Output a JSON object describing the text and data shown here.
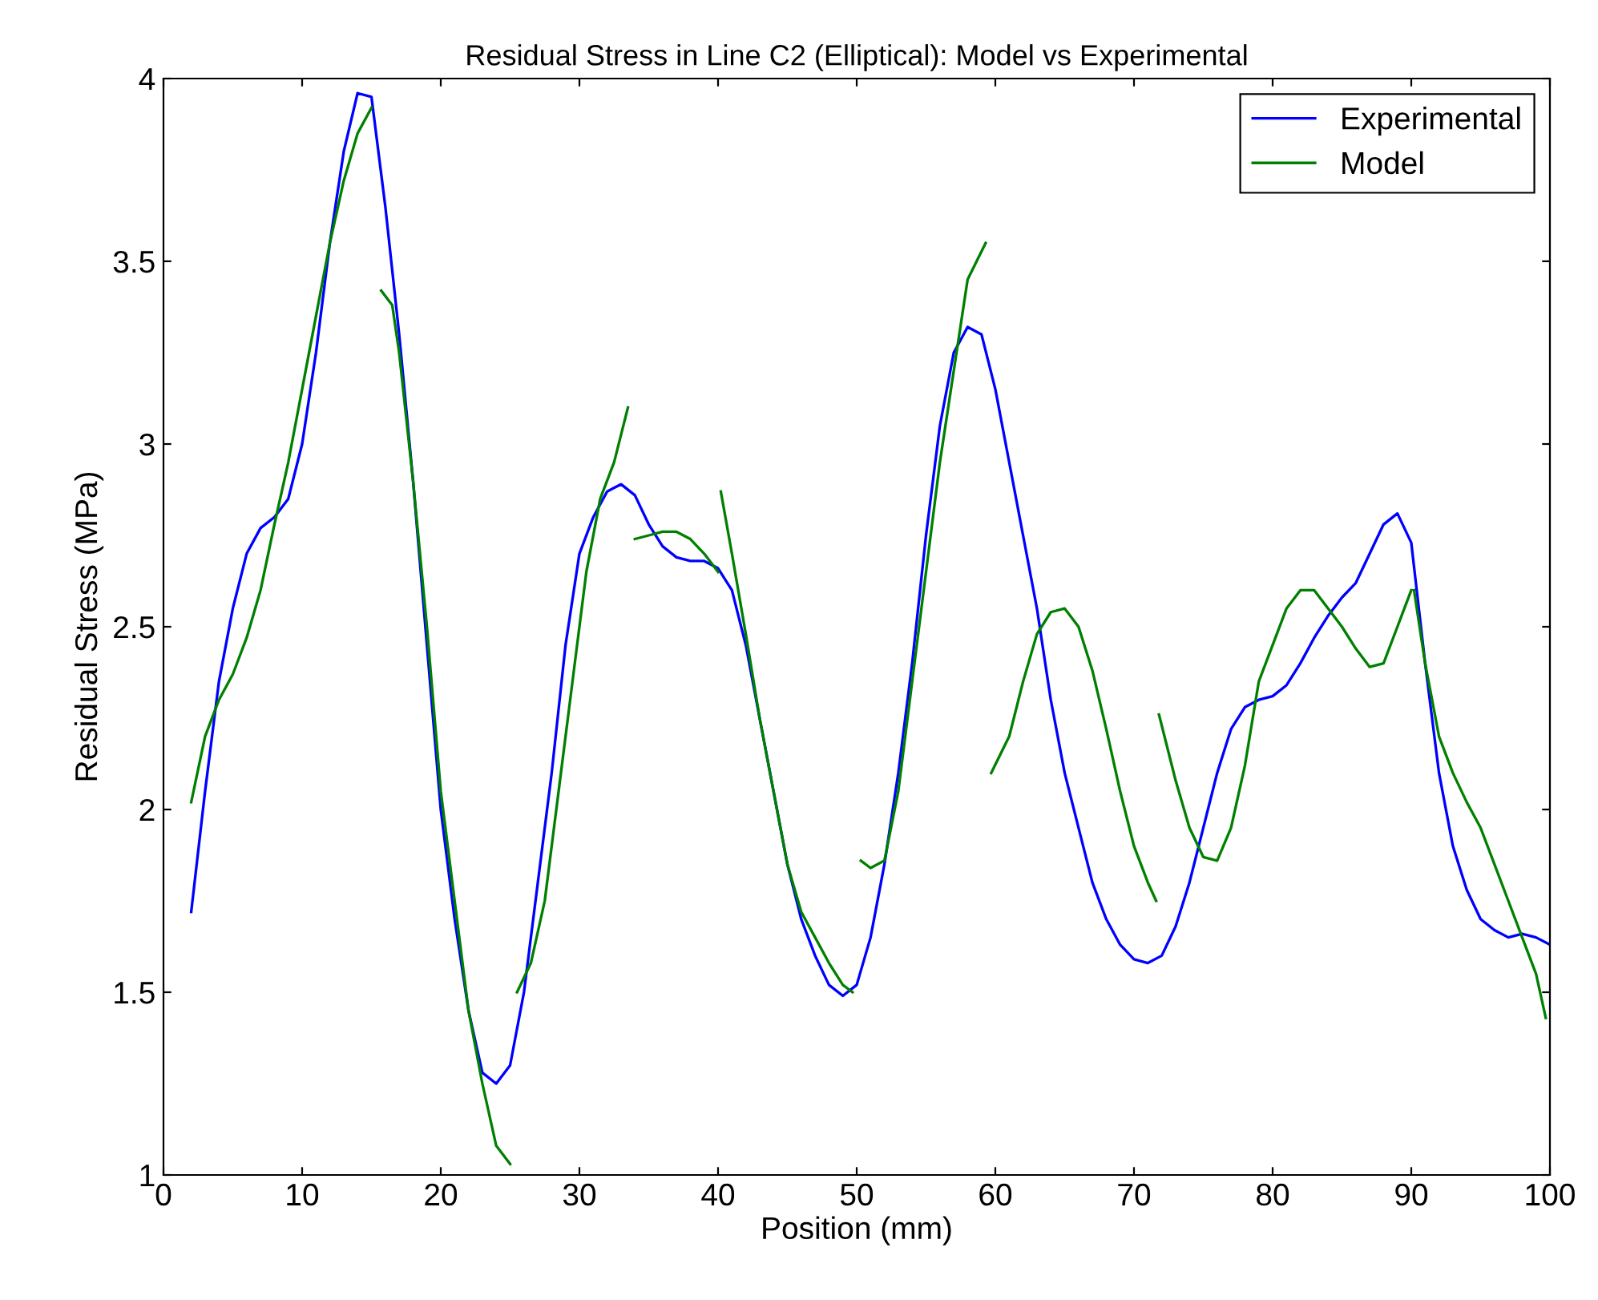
{
  "chart_data": {
    "type": "line",
    "title": "Residual Stress in Line C2 (Elliptical): Model vs Experimental",
    "xlabel": "Position (mm)",
    "ylabel": "Residual Stress (MPa)",
    "xlim": [
      0,
      100
    ],
    "ylim": [
      1,
      4
    ],
    "xticks": [
      0,
      10,
      20,
      30,
      40,
      50,
      60,
      70,
      80,
      90,
      100
    ],
    "yticks": [
      1,
      1.5,
      2,
      2.5,
      3,
      3.5,
      4
    ],
    "grid": false,
    "legend": "top right",
    "line_style": "solid",
    "marker": "none",
    "series": [
      {
        "name": "Experimental",
        "color": "#0000ff",
        "x": [
          2,
          3,
          4,
          5,
          6,
          7,
          8,
          9,
          10,
          11,
          12,
          13,
          14,
          15,
          16,
          17,
          18,
          19,
          20,
          21,
          22,
          23,
          24,
          25,
          26,
          27,
          28,
          29,
          30,
          31,
          32,
          33,
          34,
          35,
          36,
          37,
          38,
          39,
          40,
          41,
          42,
          43,
          44,
          45,
          46,
          47,
          48,
          49,
          50,
          51,
          52,
          53,
          54,
          55,
          56,
          57,
          58,
          59,
          60,
          61,
          62,
          63,
          64,
          65,
          66,
          67,
          68,
          69,
          70,
          71,
          72,
          73,
          74,
          75,
          76,
          77,
          78,
          79,
          80,
          81,
          82,
          83,
          84,
          85,
          86,
          87,
          88,
          89,
          90,
          91,
          92,
          93,
          94,
          95,
          96,
          97,
          98,
          99,
          100
        ],
        "values": [
          1.72,
          2.05,
          2.35,
          2.55,
          2.7,
          2.77,
          2.8,
          2.85,
          3.0,
          3.25,
          3.55,
          3.8,
          3.96,
          3.95,
          3.65,
          3.3,
          2.9,
          2.45,
          2.0,
          1.7,
          1.45,
          1.28,
          1.25,
          1.3,
          1.5,
          1.8,
          2.1,
          2.45,
          2.7,
          2.8,
          2.87,
          2.89,
          2.86,
          2.78,
          2.72,
          2.69,
          2.68,
          2.68,
          2.66,
          2.6,
          2.45,
          2.25,
          2.05,
          1.85,
          1.7,
          1.6,
          1.52,
          1.49,
          1.52,
          1.65,
          1.85,
          2.1,
          2.4,
          2.75,
          3.05,
          3.25,
          3.32,
          3.3,
          3.15,
          2.95,
          2.75,
          2.55,
          2.3,
          2.1,
          1.95,
          1.8,
          1.7,
          1.63,
          1.59,
          1.58,
          1.6,
          1.68,
          1.8,
          1.95,
          2.1,
          2.22,
          2.28,
          2.3,
          2.31,
          2.34,
          2.4,
          2.47,
          2.53,
          2.58,
          2.62,
          2.7,
          2.78,
          2.81,
          2.73,
          2.4,
          2.1,
          1.9,
          1.78,
          1.7,
          1.67,
          1.65,
          1.66,
          1.65,
          1.63
        ]
      },
      {
        "name": "Model",
        "color": "#008000",
        "x": [
          2,
          3,
          4,
          5,
          6,
          7,
          8,
          9,
          10,
          11,
          12,
          13,
          14,
          15,
          15.35,
          15.7,
          16.5,
          17,
          18,
          19,
          20,
          21,
          22,
          23,
          24,
          25,
          25.25,
          25.5,
          26.5,
          27.5,
          28.5,
          29.5,
          30.5,
          31.5,
          32.5,
          33.5,
          33.75,
          34,
          35,
          36,
          37,
          38,
          39,
          40,
          40.1,
          40.2,
          41,
          42,
          43,
          44,
          45,
          46,
          47,
          48,
          49,
          49.7,
          50,
          50.3,
          51,
          52,
          53,
          54,
          55,
          56,
          57,
          58,
          59.3,
          59.5,
          59.7,
          61,
          62,
          63,
          64,
          65,
          66,
          67,
          68,
          69,
          70,
          71,
          71.6,
          71.7,
          71.8,
          73,
          74,
          75,
          76,
          77,
          78,
          79,
          80,
          81,
          82,
          83,
          84,
          85,
          86,
          87,
          88,
          89,
          90,
          90.1,
          90.2,
          91,
          92,
          93,
          94,
          95,
          96,
          97,
          98,
          99,
          99.7
        ],
        "values": [
          2.02,
          2.2,
          2.3,
          2.37,
          2.47,
          2.6,
          2.78,
          2.95,
          3.15,
          3.35,
          3.55,
          3.72,
          3.85,
          3.92,
          null,
          3.42,
          3.38,
          3.25,
          2.9,
          2.5,
          2.05,
          1.75,
          1.45,
          1.25,
          1.08,
          1.03,
          null,
          1.5,
          1.58,
          1.75,
          2.05,
          2.35,
          2.65,
          2.85,
          2.95,
          3.1,
          null,
          2.74,
          2.75,
          2.76,
          2.76,
          2.74,
          2.7,
          2.65,
          null,
          2.87,
          2.7,
          2.48,
          2.25,
          2.05,
          1.85,
          1.72,
          1.65,
          1.58,
          1.52,
          1.5,
          null,
          1.86,
          1.84,
          1.86,
          2.05,
          2.35,
          2.65,
          2.95,
          3.2,
          3.45,
          3.55,
          null,
          2.1,
          2.2,
          2.35,
          2.48,
          2.54,
          2.55,
          2.5,
          2.38,
          2.22,
          2.05,
          1.9,
          1.8,
          1.75,
          null,
          2.26,
          2.08,
          1.95,
          1.87,
          1.86,
          1.95,
          2.12,
          2.35,
          2.45,
          2.55,
          2.6,
          2.6,
          2.55,
          2.5,
          2.44,
          2.39,
          2.4,
          2.5,
          2.6,
          null,
          2.6,
          2.4,
          2.2,
          2.1,
          2.02,
          1.95,
          1.85,
          1.75,
          1.65,
          1.55,
          1.43
        ]
      }
    ]
  }
}
